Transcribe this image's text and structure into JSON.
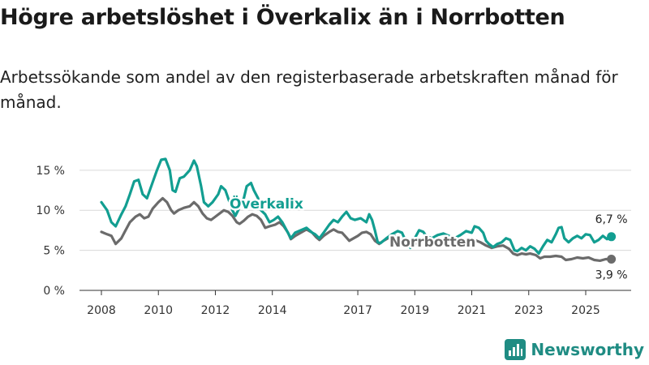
{
  "title": "Högre arbetslöshet i Överkalix än i Norrbotten",
  "subtitle": "Arbetssökande som andel av den registerbaserade arbetskraften månad för månad.",
  "brand": "Newsworthy",
  "colors": {
    "overkalix": "#129e91",
    "norrbotten": "#6b6b6b",
    "grid": "#d9d9d9",
    "axis": "#333333",
    "brand": "#1f8c83"
  },
  "chart_data": {
    "type": "line",
    "x_range": [
      2008.0,
      2025.9
    ],
    "ylim": [
      0,
      16.5
    ],
    "y_ticks": [
      0,
      5,
      10,
      15
    ],
    "y_tick_labels": [
      "0 %",
      "5 %",
      "10 %",
      "15 %"
    ],
    "x_ticks": [
      2008,
      2010,
      2012,
      2014,
      2017,
      2019,
      2021,
      2023,
      2025
    ],
    "x_tick_labels": [
      "2008",
      "2010",
      "2012",
      "2014",
      "2017",
      "2019",
      "2021",
      "2023",
      "2025"
    ],
    "series": [
      {
        "name": "Överkalix",
        "label": "Överkalix",
        "end_label": "6,7 %",
        "points": [
          [
            2008.0,
            11.0
          ],
          [
            2008.2,
            10.0
          ],
          [
            2008.35,
            8.5
          ],
          [
            2008.5,
            8.0
          ],
          [
            2008.7,
            9.5
          ],
          [
            2008.85,
            10.5
          ],
          [
            2009.0,
            12.0
          ],
          [
            2009.15,
            13.6
          ],
          [
            2009.3,
            13.8
          ],
          [
            2009.45,
            12.0
          ],
          [
            2009.6,
            11.5
          ],
          [
            2009.8,
            13.5
          ],
          [
            2009.95,
            15.0
          ],
          [
            2010.1,
            16.3
          ],
          [
            2010.25,
            16.4
          ],
          [
            2010.4,
            15.0
          ],
          [
            2010.5,
            12.5
          ],
          [
            2010.6,
            12.3
          ],
          [
            2010.75,
            14.0
          ],
          [
            2010.9,
            14.2
          ],
          [
            2011.1,
            15.0
          ],
          [
            2011.25,
            16.2
          ],
          [
            2011.35,
            15.5
          ],
          [
            2011.5,
            13.0
          ],
          [
            2011.6,
            11.0
          ],
          [
            2011.75,
            10.5
          ],
          [
            2011.9,
            11.0
          ],
          [
            2012.1,
            12.0
          ],
          [
            2012.2,
            13.0
          ],
          [
            2012.35,
            12.5
          ],
          [
            2012.5,
            11.0
          ],
          [
            2012.6,
            10.0
          ],
          [
            2012.7,
            9.3
          ],
          [
            2012.8,
            10.0
          ],
          [
            2013.0,
            11.5
          ],
          [
            2013.1,
            13.0
          ],
          [
            2013.25,
            13.4
          ],
          [
            2013.35,
            12.5
          ],
          [
            2013.5,
            11.5
          ],
          [
            2013.6,
            10.0
          ],
          [
            2013.75,
            9.5
          ],
          [
            2013.9,
            8.5
          ],
          [
            2014.05,
            8.8
          ],
          [
            2014.2,
            9.2
          ],
          [
            2014.35,
            8.5
          ],
          [
            2014.5,
            7.5
          ],
          [
            2014.65,
            6.5
          ],
          [
            2014.8,
            7.2
          ],
          [
            2015.0,
            7.5
          ],
          [
            2015.2,
            7.8
          ],
          [
            2015.4,
            7.2
          ],
          [
            2015.5,
            7.0
          ],
          [
            2015.65,
            6.5
          ],
          [
            2015.8,
            7.2
          ],
          [
            2016.0,
            8.2
          ],
          [
            2016.15,
            8.8
          ],
          [
            2016.3,
            8.5
          ],
          [
            2016.45,
            9.2
          ],
          [
            2016.6,
            9.8
          ],
          [
            2016.75,
            9.0
          ],
          [
            2016.9,
            8.8
          ],
          [
            2017.1,
            9.0
          ],
          [
            2017.3,
            8.5
          ],
          [
            2017.4,
            9.5
          ],
          [
            2017.5,
            8.8
          ],
          [
            2017.6,
            7.5
          ],
          [
            2017.7,
            6.0
          ],
          [
            2017.8,
            5.9
          ],
          [
            2018.0,
            6.5
          ],
          [
            2018.2,
            7.0
          ],
          [
            2018.4,
            7.4
          ],
          [
            2018.55,
            7.2
          ],
          [
            2018.7,
            6.0
          ],
          [
            2018.85,
            5.3
          ],
          [
            2019.0,
            6.5
          ],
          [
            2019.15,
            7.5
          ],
          [
            2019.3,
            7.3
          ],
          [
            2019.4,
            6.8
          ],
          [
            2019.6,
            6.5
          ],
          [
            2019.8,
            6.9
          ],
          [
            2020.0,
            7.1
          ],
          [
            2020.2,
            6.8
          ],
          [
            2020.4,
            6.5
          ],
          [
            2020.6,
            6.9
          ],
          [
            2020.8,
            7.4
          ],
          [
            2021.0,
            7.2
          ],
          [
            2021.1,
            8.0
          ],
          [
            2021.25,
            7.8
          ],
          [
            2021.4,
            7.2
          ],
          [
            2021.5,
            6.2
          ],
          [
            2021.6,
            5.8
          ],
          [
            2021.75,
            5.4
          ],
          [
            2021.9,
            5.8
          ],
          [
            2022.05,
            6.0
          ],
          [
            2022.2,
            6.5
          ],
          [
            2022.35,
            6.3
          ],
          [
            2022.5,
            5.0
          ],
          [
            2022.6,
            4.9
          ],
          [
            2022.75,
            5.3
          ],
          [
            2022.9,
            5.0
          ],
          [
            2023.05,
            5.5
          ],
          [
            2023.2,
            5.2
          ],
          [
            2023.35,
            4.6
          ],
          [
            2023.5,
            5.5
          ],
          [
            2023.65,
            6.3
          ],
          [
            2023.8,
            6.0
          ],
          [
            2023.95,
            7.0
          ],
          [
            2024.05,
            7.8
          ],
          [
            2024.15,
            7.9
          ],
          [
            2024.25,
            6.5
          ],
          [
            2024.4,
            6.0
          ],
          [
            2024.55,
            6.5
          ],
          [
            2024.7,
            6.8
          ],
          [
            2024.85,
            6.5
          ],
          [
            2025.0,
            7.0
          ],
          [
            2025.15,
            6.9
          ],
          [
            2025.3,
            6.0
          ],
          [
            2025.45,
            6.3
          ],
          [
            2025.6,
            6.8
          ],
          [
            2025.75,
            6.4
          ],
          [
            2025.9,
            6.7
          ]
        ]
      },
      {
        "name": "Norrbotten",
        "label": "Norrbotten",
        "end_label": "3,9 %",
        "points": [
          [
            2008.0,
            7.3
          ],
          [
            2008.2,
            7.0
          ],
          [
            2008.35,
            6.8
          ],
          [
            2008.5,
            5.8
          ],
          [
            2008.7,
            6.5
          ],
          [
            2008.85,
            7.5
          ],
          [
            2009.0,
            8.5
          ],
          [
            2009.2,
            9.2
          ],
          [
            2009.35,
            9.5
          ],
          [
            2009.5,
            9.0
          ],
          [
            2009.65,
            9.2
          ],
          [
            2009.8,
            10.2
          ],
          [
            2010.0,
            11.0
          ],
          [
            2010.15,
            11.5
          ],
          [
            2010.3,
            11.0
          ],
          [
            2010.45,
            10.0
          ],
          [
            2010.55,
            9.6
          ],
          [
            2010.7,
            10.0
          ],
          [
            2010.9,
            10.3
          ],
          [
            2011.1,
            10.5
          ],
          [
            2011.25,
            11.0
          ],
          [
            2011.4,
            10.5
          ],
          [
            2011.55,
            9.6
          ],
          [
            2011.7,
            9.0
          ],
          [
            2011.85,
            8.8
          ],
          [
            2012.0,
            9.2
          ],
          [
            2012.15,
            9.6
          ],
          [
            2012.3,
            10.0
          ],
          [
            2012.45,
            9.8
          ],
          [
            2012.6,
            9.3
          ],
          [
            2012.75,
            8.5
          ],
          [
            2012.85,
            8.3
          ],
          [
            2013.0,
            8.7
          ],
          [
            2013.15,
            9.2
          ],
          [
            2013.3,
            9.5
          ],
          [
            2013.45,
            9.3
          ],
          [
            2013.6,
            8.8
          ],
          [
            2013.75,
            7.8
          ],
          [
            2013.9,
            8.0
          ],
          [
            2014.1,
            8.2
          ],
          [
            2014.25,
            8.5
          ],
          [
            2014.4,
            8.0
          ],
          [
            2014.55,
            7.2
          ],
          [
            2014.65,
            6.4
          ],
          [
            2014.8,
            6.8
          ],
          [
            2015.0,
            7.2
          ],
          [
            2015.2,
            7.6
          ],
          [
            2015.4,
            7.2
          ],
          [
            2015.55,
            6.6
          ],
          [
            2015.65,
            6.3
          ],
          [
            2015.8,
            6.8
          ],
          [
            2016.0,
            7.3
          ],
          [
            2016.15,
            7.6
          ],
          [
            2016.3,
            7.3
          ],
          [
            2016.45,
            7.2
          ],
          [
            2016.6,
            6.6
          ],
          [
            2016.7,
            6.2
          ],
          [
            2016.85,
            6.5
          ],
          [
            2017.0,
            6.8
          ],
          [
            2017.15,
            7.2
          ],
          [
            2017.3,
            7.3
          ],
          [
            2017.45,
            7.0
          ],
          [
            2017.6,
            6.2
          ],
          [
            2017.75,
            5.8
          ],
          [
            2017.9,
            6.2
          ],
          [
            2018.1,
            6.6
          ],
          [
            2018.3,
            6.8
          ],
          [
            2018.5,
            6.5
          ],
          [
            2018.7,
            5.9
          ],
          [
            2018.9,
            5.6
          ],
          [
            2019.1,
            6.0
          ],
          [
            2019.3,
            6.4
          ],
          [
            2019.5,
            6.2
          ],
          [
            2019.7,
            5.8
          ],
          [
            2019.9,
            6.0
          ],
          [
            2020.1,
            6.3
          ],
          [
            2020.3,
            6.1
          ],
          [
            2020.5,
            5.9
          ],
          [
            2020.7,
            6.3
          ],
          [
            2020.9,
            6.5
          ],
          [
            2021.1,
            6.3
          ],
          [
            2021.3,
            6.0
          ],
          [
            2021.5,
            5.6
          ],
          [
            2021.7,
            5.3
          ],
          [
            2021.9,
            5.5
          ],
          [
            2022.1,
            5.6
          ],
          [
            2022.3,
            5.2
          ],
          [
            2022.45,
            4.6
          ],
          [
            2022.6,
            4.4
          ],
          [
            2022.75,
            4.6
          ],
          [
            2022.9,
            4.5
          ],
          [
            2023.05,
            4.6
          ],
          [
            2023.25,
            4.4
          ],
          [
            2023.4,
            4.0
          ],
          [
            2023.55,
            4.2
          ],
          [
            2023.75,
            4.2
          ],
          [
            2023.95,
            4.3
          ],
          [
            2024.15,
            4.2
          ],
          [
            2024.3,
            3.8
          ],
          [
            2024.5,
            3.9
          ],
          [
            2024.7,
            4.1
          ],
          [
            2024.9,
            4.0
          ],
          [
            2025.1,
            4.1
          ],
          [
            2025.3,
            3.8
          ],
          [
            2025.5,
            3.7
          ],
          [
            2025.7,
            3.9
          ],
          [
            2025.9,
            3.9
          ]
        ]
      }
    ]
  }
}
